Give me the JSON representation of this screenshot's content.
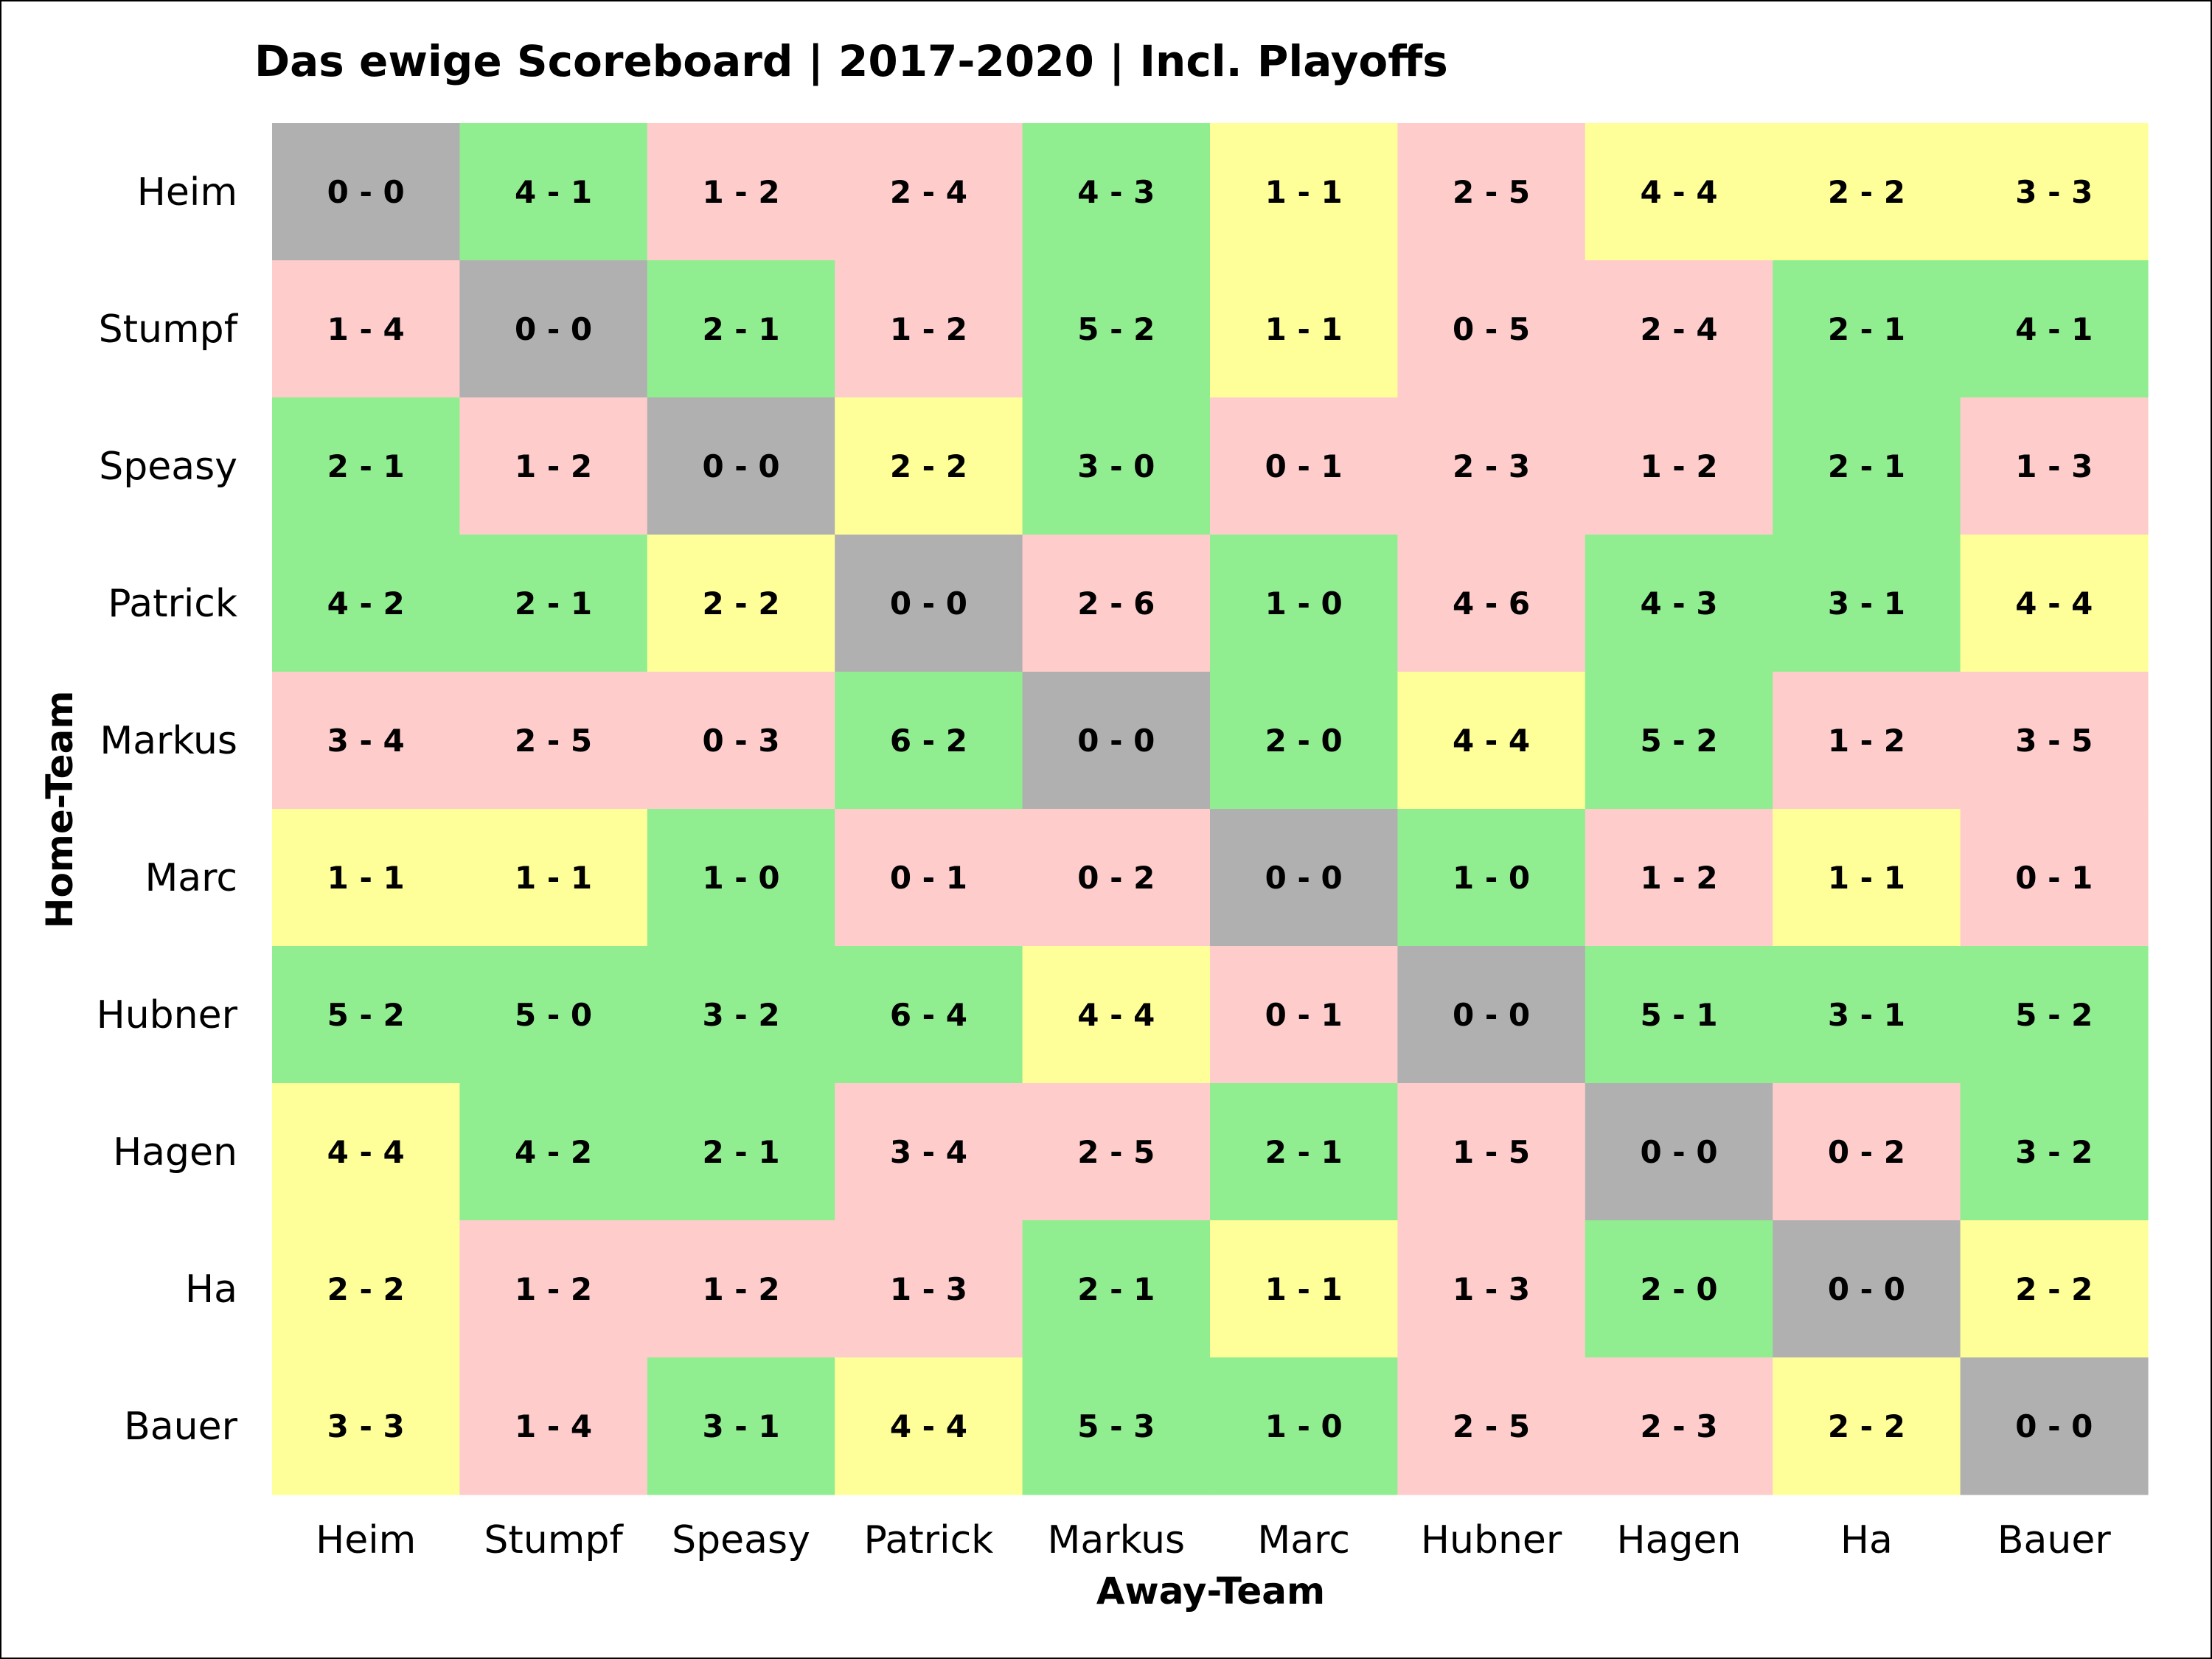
{
  "chart_data": {
    "type": "heatmap",
    "title": "Das ewige Scoreboard | 2017-2020 | Incl. Playoffs",
    "xlabel": "Away-Team",
    "ylabel": "Home-Team",
    "x_categories": [
      "Heim",
      "Stumpf",
      "Speasy",
      "Patrick",
      "Markus",
      "Marc",
      "Hubner",
      "Hagen",
      "Ha",
      "Bauer"
    ],
    "y_categories": [
      "Heim",
      "Stumpf",
      "Speasy",
      "Patrick",
      "Markus",
      "Marc",
      "Hubner",
      "Hagen",
      "Ha",
      "Bauer"
    ],
    "cells": [
      [
        "0 - 0",
        "4 - 1",
        "1 - 2",
        "2 - 4",
        "4 - 3",
        "1 - 1",
        "2 - 5",
        "4 - 4",
        "2 - 2",
        "3 - 3"
      ],
      [
        "1 - 4",
        "0 - 0",
        "2 - 1",
        "1 - 2",
        "5 - 2",
        "1 - 1",
        "0 - 5",
        "2 - 4",
        "2 - 1",
        "4 - 1"
      ],
      [
        "2 - 1",
        "1 - 2",
        "0 - 0",
        "2 - 2",
        "3 - 0",
        "0 - 1",
        "2 - 3",
        "1 - 2",
        "2 - 1",
        "1 - 3"
      ],
      [
        "4 - 2",
        "2 - 1",
        "2 - 2",
        "0 - 0",
        "2 - 6",
        "1 - 0",
        "4 - 6",
        "4 - 3",
        "3 - 1",
        "4 - 4"
      ],
      [
        "3 - 4",
        "2 - 5",
        "0 - 3",
        "6 - 2",
        "0 - 0",
        "2 - 0",
        "4 - 4",
        "5 - 2",
        "1 - 2",
        "3 - 5"
      ],
      [
        "1 - 1",
        "1 - 1",
        "1 - 0",
        "0 - 1",
        "0 - 2",
        "0 - 0",
        "1 - 0",
        "1 - 2",
        "1 - 1",
        "0 - 1"
      ],
      [
        "5 - 2",
        "5 - 0",
        "3 - 2",
        "6 - 4",
        "4 - 4",
        "0 - 1",
        "0 - 0",
        "5 - 1",
        "3 - 1",
        "5 - 2"
      ],
      [
        "4 - 4",
        "4 - 2",
        "2 - 1",
        "3 - 4",
        "2 - 5",
        "2 - 1",
        "1 - 5",
        "0 - 0",
        "0 - 2",
        "3 - 2"
      ],
      [
        "2 - 2",
        "1 - 2",
        "1 - 2",
        "1 - 3",
        "2 - 1",
        "1 - 1",
        "1 - 3",
        "2 - 0",
        "0 - 0",
        "2 - 2"
      ],
      [
        "3 - 3",
        "1 - 4",
        "3 - 1",
        "4 - 4",
        "5 - 3",
        "1 - 0",
        "2 - 5",
        "2 - 3",
        "2 - 2",
        "0 - 0"
      ]
    ],
    "colors": {
      "win": "#90ee90",
      "loss": "#ffcccc",
      "draw": "#ffff99",
      "self": "#b0b0b0"
    },
    "grid": false,
    "legend": "none"
  }
}
